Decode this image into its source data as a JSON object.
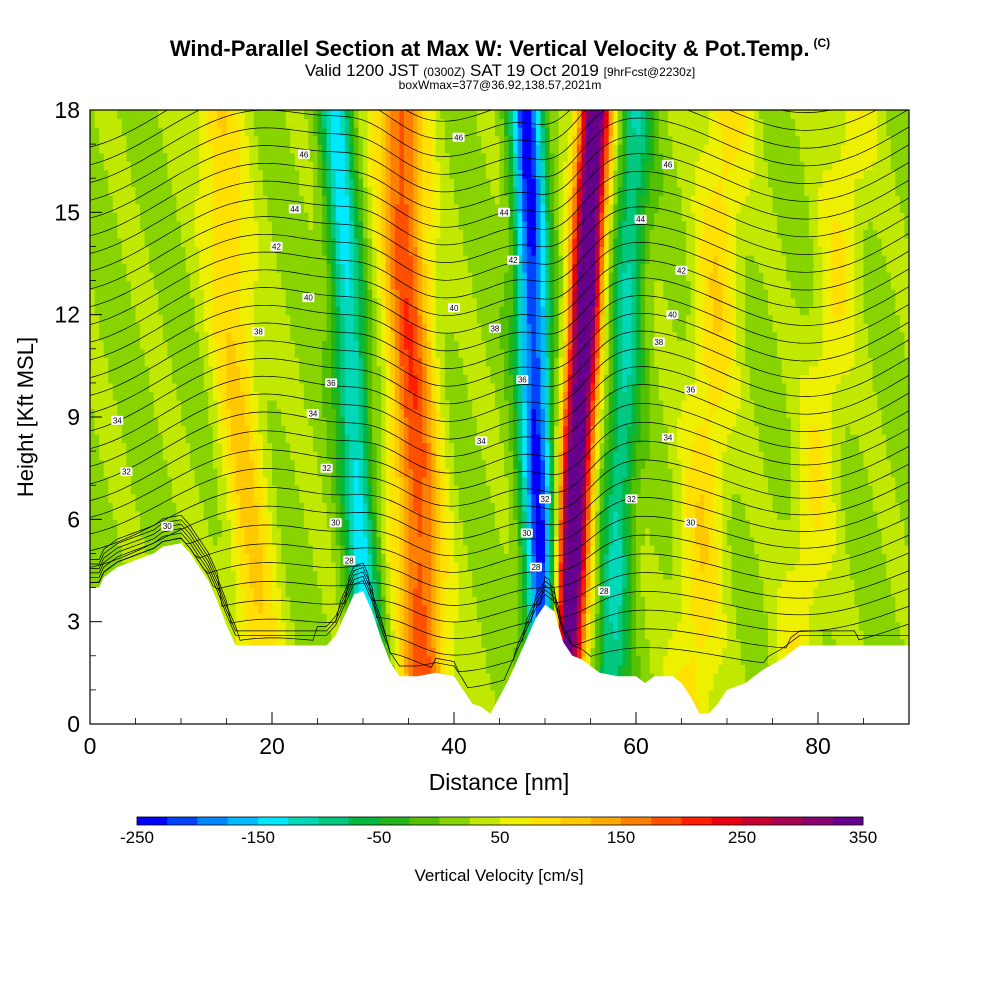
{
  "header": {
    "title": "Wind-Parallel Section at Max W: Vertical Velocity & Pot.Temp.",
    "copyright": "(C)",
    "valid_prefix": "Valid 1200 JST",
    "valid_utc": "(0300Z)",
    "valid_date": "SAT 19 Oct 2019",
    "forecast": "[9hrFcst@2230z]",
    "boxwmax": "boxWmax=377@36.92,138.57,2021m"
  },
  "colors": {
    "palette": [
      "#0000ff",
      "#0044ff",
      "#0088ff",
      "#00bbff",
      "#00e8ff",
      "#00d8b8",
      "#00c880",
      "#00b840",
      "#22b418",
      "#55c000",
      "#88d400",
      "#c0e800",
      "#eef000",
      "#ffe000",
      "#ffc800",
      "#ffa800",
      "#ff8000",
      "#ff5000",
      "#ff1e00",
      "#e80010",
      "#c80030",
      "#a80050",
      "#880070",
      "#66008c"
    ]
  },
  "chart_data": {
    "type": "heatmap",
    "xlabel": "Distance [nm]",
    "ylabel": "Height [Kft MSL]",
    "xlim": [
      0,
      90
    ],
    "ylim": [
      0,
      18
    ],
    "xticks": [
      0,
      20,
      40,
      60,
      80
    ],
    "yticks": [
      0,
      3,
      6,
      9,
      12,
      15,
      18
    ],
    "colorbar": {
      "label": "Vertical Velocity [cm/s]",
      "min": -250,
      "max": 350,
      "step": 25,
      "tick_values": [
        -250,
        -150,
        -50,
        50,
        150,
        250,
        350
      ]
    },
    "updraft_bands": [
      {
        "x_base": 19,
        "x_top": 14,
        "peak_cm_s": 80
      },
      {
        "x_base": 37,
        "x_top": 34,
        "peak_cm_s": 170
      },
      {
        "x_base": 52,
        "x_top": 55.5,
        "peak_cm_s": 377
      },
      {
        "x_base": 66,
        "x_top": 70,
        "peak_cm_s": 70
      },
      {
        "x_base": 77,
        "x_top": 84,
        "peak_cm_s": 50
      }
    ],
    "downdraft_bands": [
      {
        "x_base": 31,
        "x_top": 27,
        "peak_cm_s": -150
      },
      {
        "x_base": 50,
        "x_top": 48,
        "peak_cm_s": -250
      },
      {
        "x_base": 57,
        "x_top": 60,
        "peak_cm_s": -120
      }
    ],
    "terrain_kft": [
      [
        0,
        4.0
      ],
      [
        1,
        4.0
      ],
      [
        1.5,
        4.3
      ],
      [
        3,
        4.6
      ],
      [
        5,
        4.8
      ],
      [
        7,
        5.0
      ],
      [
        8,
        5.2
      ],
      [
        10,
        5.3
      ],
      [
        11,
        5.0
      ],
      [
        12,
        4.6
      ],
      [
        13,
        4.2
      ],
      [
        14,
        3.6
      ],
      [
        15,
        2.9
      ],
      [
        16,
        2.3
      ],
      [
        18,
        2.3
      ],
      [
        20,
        2.3
      ],
      [
        22,
        2.3
      ],
      [
        24,
        2.3
      ],
      [
        26,
        2.3
      ],
      [
        27,
        2.6
      ],
      [
        28,
        3.2
      ],
      [
        29,
        3.8
      ],
      [
        30,
        3.9
      ],
      [
        31,
        3.3
      ],
      [
        32,
        2.5
      ],
      [
        33,
        1.8
      ],
      [
        34,
        1.4
      ],
      [
        36,
        1.4
      ],
      [
        38,
        1.5
      ],
      [
        40,
        1.4
      ],
      [
        41,
        1.0
      ],
      [
        42,
        0.6
      ],
      [
        43,
        0.5
      ],
      [
        44,
        0.3
      ],
      [
        45,
        0.8
      ],
      [
        46,
        1.3
      ],
      [
        47,
        1.9
      ],
      [
        48,
        2.5
      ],
      [
        49,
        3.1
      ],
      [
        50,
        3.5
      ],
      [
        51,
        3.3
      ],
      [
        52,
        2.4
      ],
      [
        53,
        2.0
      ],
      [
        54,
        1.9
      ],
      [
        55,
        1.7
      ],
      [
        56,
        1.5
      ],
      [
        58,
        1.4
      ],
      [
        60,
        1.4
      ],
      [
        61,
        1.2
      ],
      [
        62,
        1.4
      ],
      [
        64,
        1.4
      ],
      [
        65,
        1.2
      ],
      [
        66,
        0.8
      ],
      [
        67,
        0.3
      ],
      [
        68,
        0.3
      ],
      [
        69,
        0.6
      ],
      [
        70,
        1.0
      ],
      [
        72,
        1.2
      ],
      [
        74,
        1.6
      ],
      [
        76,
        1.9
      ],
      [
        78,
        2.3
      ],
      [
        80,
        2.3
      ],
      [
        84,
        2.3
      ],
      [
        88,
        2.3
      ],
      [
        90,
        2.3
      ]
    ],
    "theta_labels": [
      {
        "text": "34",
        "x": 3,
        "y": 8.9
      },
      {
        "text": "32",
        "x": 4,
        "y": 7.4
      },
      {
        "text": "30",
        "x": 8.5,
        "y": 5.8
      },
      {
        "text": "46",
        "x": 23.5,
        "y": 16.7
      },
      {
        "text": "44",
        "x": 22.5,
        "y": 15.1
      },
      {
        "text": "42",
        "x": 20.5,
        "y": 14.0
      },
      {
        "text": "40",
        "x": 24,
        "y": 12.5
      },
      {
        "text": "38",
        "x": 18.5,
        "y": 11.5
      },
      {
        "text": "36",
        "x": 26.5,
        "y": 10.0
      },
      {
        "text": "34",
        "x": 24.5,
        "y": 9.1
      },
      {
        "text": "32",
        "x": 26,
        "y": 7.5
      },
      {
        "text": "30",
        "x": 27,
        "y": 5.9
      },
      {
        "text": "28",
        "x": 28.5,
        "y": 4.8
      },
      {
        "text": "46",
        "x": 40.5,
        "y": 17.2
      },
      {
        "text": "44",
        "x": 45.5,
        "y": 15.0
      },
      {
        "text": "42",
        "x": 46.5,
        "y": 13.6
      },
      {
        "text": "40",
        "x": 40,
        "y": 12.2
      },
      {
        "text": "38",
        "x": 44.5,
        "y": 11.6
      },
      {
        "text": "36",
        "x": 47.5,
        "y": 10.1
      },
      {
        "text": "34",
        "x": 43,
        "y": 8.3
      },
      {
        "text": "32",
        "x": 50,
        "y": 6.6
      },
      {
        "text": "30",
        "x": 48,
        "y": 5.6
      },
      {
        "text": "28",
        "x": 49,
        "y": 4.6
      },
      {
        "text": "46",
        "x": 63.5,
        "y": 16.4
      },
      {
        "text": "44",
        "x": 60.5,
        "y": 14.8
      },
      {
        "text": "42",
        "x": 65,
        "y": 13.3
      },
      {
        "text": "40",
        "x": 64,
        "y": 12.0
      },
      {
        "text": "38",
        "x": 62.5,
        "y": 11.2
      },
      {
        "text": "36",
        "x": 66,
        "y": 9.8
      },
      {
        "text": "34",
        "x": 63.5,
        "y": 8.4
      },
      {
        "text": "32",
        "x": 59.5,
        "y": 6.6
      },
      {
        "text": "30",
        "x": 66,
        "y": 5.9
      },
      {
        "text": "28",
        "x": 56.5,
        "y": 3.9
      }
    ]
  }
}
